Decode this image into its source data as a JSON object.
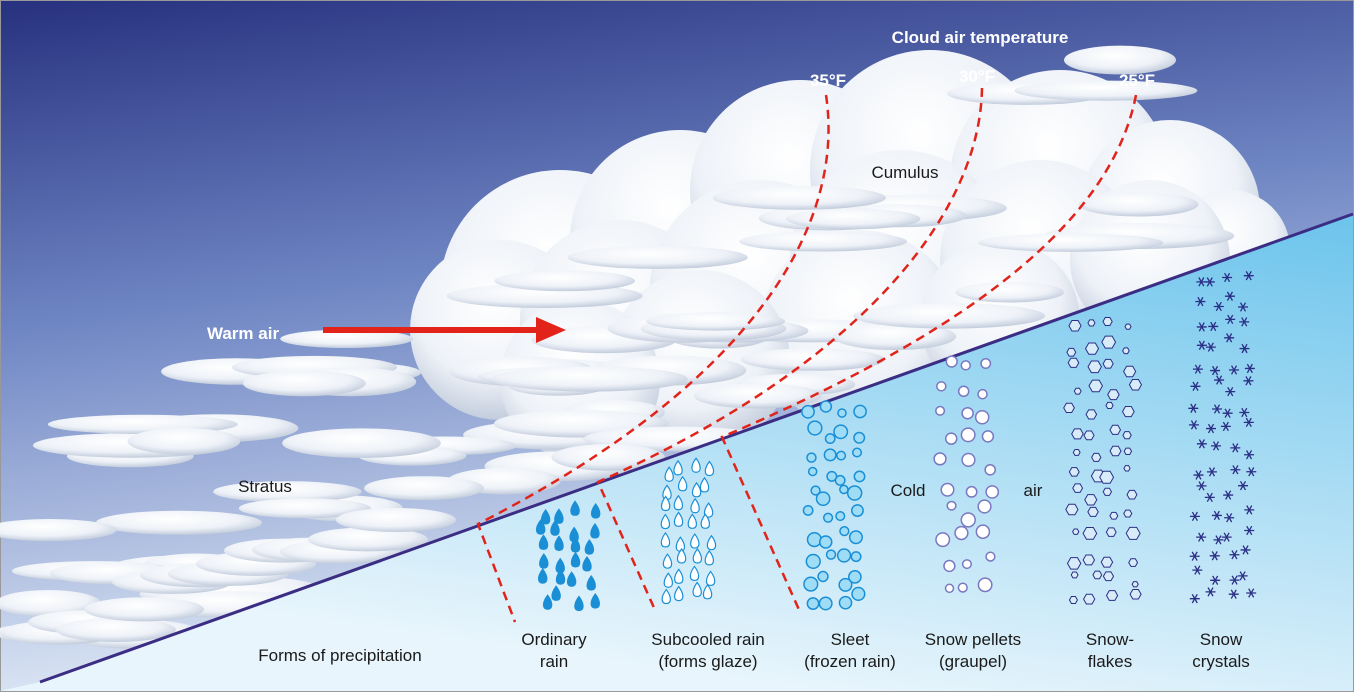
{
  "title": "Cloud air temperature",
  "isotherms": [
    {
      "label": "35°F"
    },
    {
      "label": "30°F"
    },
    {
      "label": "25°F"
    }
  ],
  "labels": {
    "cumulus": "Cumulus",
    "warm_air": "Warm air",
    "stratus": "Stratus",
    "cold": "Cold",
    "air": "air"
  },
  "precipitation": {
    "title": "Forms of precipitation",
    "forms": [
      {
        "lines": [
          "Ordinary",
          "rain"
        ]
      },
      {
        "lines": [
          "Subcooled rain",
          "(forms glaze)"
        ]
      },
      {
        "lines": [
          "Sleet",
          "(frozen rain)"
        ]
      },
      {
        "lines": [
          "Snow pellets",
          "(graupel)"
        ]
      },
      {
        "lines": [
          "Snow-",
          "flakes"
        ]
      },
      {
        "lines": [
          "Snow",
          "crystals"
        ]
      }
    ]
  }
}
